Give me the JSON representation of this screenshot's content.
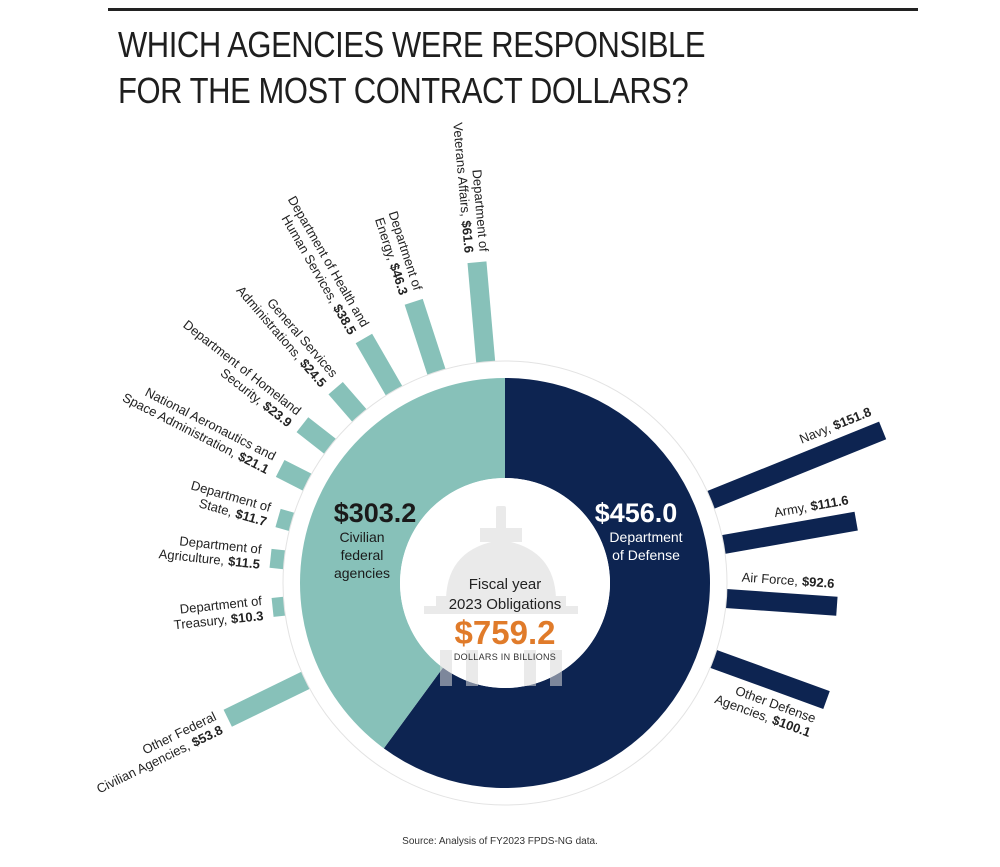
{
  "title": "WHICH AGENCIES WERE RESPONSIBLE FOR THE MOST CONTRACT DOLLARS?",
  "source": "Source: Analysis of FY2023 FPDS-NG data.",
  "colors": {
    "civilian": "#87c1b9",
    "defense": "#0d2451",
    "total": "#e07b2a",
    "ring": "#ffffff"
  },
  "chart_data": {
    "type": "pie",
    "title": "WHICH AGENCIES WERE RESPONSIBLE FOR THE MOST CONTRACT DOLLARS?",
    "units": "DOLLARS IN BILLIONS",
    "center": {
      "line1": "Fiscal year",
      "line2": "2023 Obligations",
      "total": "$759.2",
      "units": "DOLLARS IN BILLIONS"
    },
    "groups": [
      {
        "name": "Civilian federal agencies",
        "value": 303.2,
        "label": "$303.2",
        "sub": [
          "Civilian",
          "federal",
          "agencies"
        ]
      },
      {
        "name": "Department of Defense",
        "value": 456.0,
        "label": "$456.0",
        "sub": [
          "Department",
          "of Defense"
        ]
      }
    ],
    "civilian": [
      {
        "name": "Department of Veterans Affairs",
        "value": 61.6,
        "lines": [
          "Department of",
          "Veterans Affairs,"
        ],
        "value_label": "$61.6"
      },
      {
        "name": "Department of Energy",
        "value": 46.3,
        "lines": [
          "Department of",
          "Energy,"
        ],
        "value_label": "$46.3"
      },
      {
        "name": "Department of Health and Human Services",
        "value": 38.5,
        "lines": [
          "Department of Health and",
          "Human Services,"
        ],
        "value_label": "$38.5"
      },
      {
        "name": "General Services Administrations",
        "value": 24.5,
        "lines": [
          "General Services",
          "Administrations,"
        ],
        "value_label": "$24.5"
      },
      {
        "name": "Department of Homeland Security",
        "value": 23.9,
        "lines": [
          "Department of Homeland",
          "Security,"
        ],
        "value_label": "$23.9"
      },
      {
        "name": "National Aeronautics and Space Administration",
        "value": 21.1,
        "lines": [
          "National Aeronautics and",
          "Space Administration,"
        ],
        "value_label": "$21.1"
      },
      {
        "name": "Department of State",
        "value": 11.7,
        "lines": [
          "Department of",
          "State,"
        ],
        "value_label": "$11.7"
      },
      {
        "name": "Department of Agriculture",
        "value": 11.5,
        "lines": [
          "Department of",
          "Agriculture,"
        ],
        "value_label": "$11.5"
      },
      {
        "name": "Department of Treasury",
        "value": 10.3,
        "lines": [
          "Department of",
          "Treasury,"
        ],
        "value_label": "$10.3"
      },
      {
        "name": "Other Federal Civilian Agencies",
        "value": 53.8,
        "lines": [
          "Other Federal",
          "Civilian Agencies,"
        ],
        "value_label": "$53.8"
      }
    ],
    "defense": [
      {
        "name": "Navy",
        "value": 151.8,
        "lines": [
          "Navy,"
        ],
        "value_label": "$151.8"
      },
      {
        "name": "Army",
        "value": 111.6,
        "lines": [
          "Army,"
        ],
        "value_label": "$111.6"
      },
      {
        "name": "Air Force",
        "value": 92.6,
        "lines": [
          "Air Force,"
        ],
        "value_label": "$92.6"
      },
      {
        "name": "Other Defense Agencies",
        "value": 100.1,
        "lines": [
          "Other Defense",
          "Agencies,"
        ],
        "value_label": "$100.1"
      }
    ]
  }
}
